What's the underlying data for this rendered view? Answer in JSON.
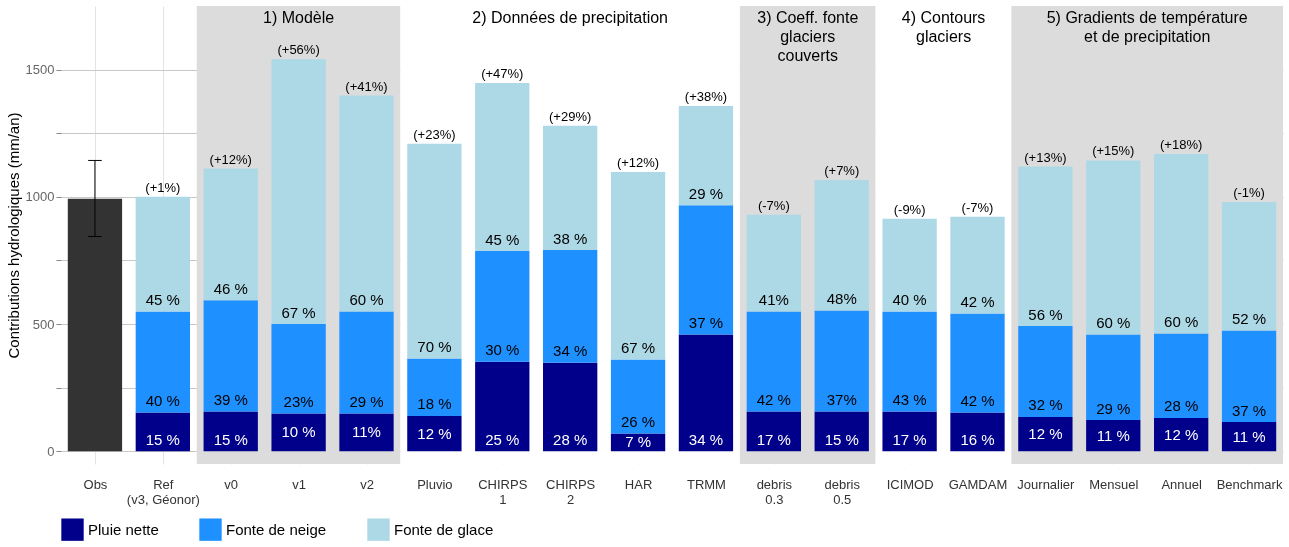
{
  "chart_data": {
    "type": "bar",
    "stacked": true,
    "ylabel": "Contributions hydrologiques (mm/an)",
    "categories": [
      "Obs",
      "Ref\n(v3, Géonor)",
      "v0",
      "v1",
      "v2",
      "Pluvio",
      "CHIRPS\n1",
      "CHIRPS\n2",
      "HAR",
      "TRMM",
      "debris\n0.3",
      "debris\n0.5",
      "ICIMOD",
      "GAMDAM",
      "Journalier",
      "Mensuel",
      "Annuel",
      "Benchmark"
    ],
    "series": [
      {
        "color": "#333333",
        "values": [
          992,
          null,
          null,
          null,
          null,
          null,
          null,
          null,
          null,
          null,
          null,
          null,
          null,
          null,
          null,
          null,
          null,
          null
        ],
        "errors": [
          [
            844,
            1143
          ],
          null,
          null,
          null,
          null,
          null,
          null,
          null,
          null,
          null,
          null,
          null,
          null,
          null,
          null,
          null,
          null,
          null
        ]
      },
      {
        "name": "Pluie nette",
        "color": "#00008b",
        "values": [
          null,
          152,
          156,
          148,
          148,
          139,
          352,
          348,
          70,
          459,
          156,
          156,
          156,
          152,
          135,
          123,
          131,
          115
        ]
      },
      {
        "name": "Fonte de neige",
        "color": "#1e90ff",
        "values": [
          null,
          397,
          438,
          352,
          401,
          226,
          435,
          443,
          291,
          508,
          393,
          397,
          393,
          389,
          357,
          336,
          332,
          360
        ]
      },
      {
        "name": "Fonte de glace",
        "color": "#add8e6",
        "values": [
          null,
          451,
          517,
          1041,
          849,
          844,
          660,
          488,
          737,
          390,
          381,
          513,
          365,
          381,
          627,
          684,
          705,
          505
        ]
      }
    ],
    "annotations": [
      {
        "text": "(+1%)",
        "x": "Ref\n(v3, Géonor)",
        "y": 1000
      },
      {
        "text": "(+12%)",
        "x": "v0",
        "y": 1111
      },
      {
        "text": "(+56%)",
        "x": "v1",
        "y": 1541
      },
      {
        "text": "(+41%)",
        "x": "v2",
        "y": 1398
      },
      {
        "text": "(+23%)",
        "x": "Pluvio",
        "y": 1209
      },
      {
        "text": "(+47%)",
        "x": "CHIRPS\n1",
        "y": 1447
      },
      {
        "text": "(+29%)",
        "x": "CHIRPS\n2",
        "y": 1279
      },
      {
        "text": "(+12%)",
        "x": "HAR",
        "y": 1098
      },
      {
        "text": "(+38%)",
        "x": "TRMM",
        "y": 1357
      },
      {
        "text": "(-7%)",
        "x": "debris\n0.3",
        "y": 930
      },
      {
        "text": "(+7%)",
        "x": "debris\n0.5",
        "y": 1066
      },
      {
        "text": "(-9%)",
        "x": "ICIMOD",
        "y": 914
      },
      {
        "text": "(-7%)",
        "x": "GAMDAM",
        "y": 922
      },
      {
        "text": "(+13%)",
        "x": "Journalier",
        "y": 1119
      },
      {
        "text": "(+15%)",
        "x": "Mensuel",
        "y": 1143
      },
      {
        "text": "(+18%)",
        "x": "Annuel",
        "y": 1168
      },
      {
        "text": "(-1%)",
        "x": "Benchmark",
        "y": 980
      },
      {
        "text": "15 %",
        "x": "Ref\n(v3, Géonor)",
        "y": 0
      },
      {
        "text": "40 %",
        "x": "Ref\n(v3, Géonor)",
        "y": 152
      },
      {
        "text": "45 %",
        "x": "Ref\n(v3, Géonor)",
        "y": 549
      },
      {
        "text": "15 %",
        "x": "v0",
        "y": 0
      },
      {
        "text": "39 %",
        "x": "v0",
        "y": 156
      },
      {
        "text": "46 %",
        "x": "v0",
        "y": 594
      },
      {
        "text": "10 %",
        "x": "v1",
        "y": 0
      },
      {
        "text": "23%",
        "x": "v1",
        "y": 148
      },
      {
        "text": "67 %",
        "x": "v1",
        "y": 500
      },
      {
        "text": "11%",
        "x": "v2",
        "y": 0
      },
      {
        "text": "29 %",
        "x": "v2",
        "y": 148
      },
      {
        "text": "60 %",
        "x": "v2",
        "y": 549
      },
      {
        "text": "12 %",
        "x": "Pluvio",
        "y": 0
      },
      {
        "text": "18 %",
        "x": "Pluvio",
        "y": 139
      },
      {
        "text": "70 %",
        "x": "Pluvio",
        "y": 365
      },
      {
        "text": "25 %",
        "x": "CHIRPS\n1",
        "y": 0
      },
      {
        "text": "30 %",
        "x": "CHIRPS\n1",
        "y": 352
      },
      {
        "text": "45 %",
        "x": "CHIRPS\n1",
        "y": 787
      },
      {
        "text": "28 %",
        "x": "CHIRPS\n2",
        "y": 0
      },
      {
        "text": "34 %",
        "x": "CHIRPS\n2",
        "y": 348
      },
      {
        "text": "38 %",
        "x": "CHIRPS\n2",
        "y": 791
      },
      {
        "text": "7 %",
        "x": "HAR",
        "y": 0
      },
      {
        "text": "26 %",
        "x": "HAR",
        "y": 70
      },
      {
        "text": "67 %",
        "x": "HAR",
        "y": 361
      },
      {
        "text": "34 %",
        "x": "TRMM",
        "y": 0
      },
      {
        "text": "37 %",
        "x": "TRMM",
        "y": 459
      },
      {
        "text": "29 %",
        "x": "TRMM",
        "y": 967
      },
      {
        "text": "17 %",
        "x": "debris\n0.3",
        "y": 0
      },
      {
        "text": "42 %",
        "x": "debris\n0.3",
        "y": 156
      },
      {
        "text": "41%",
        "x": "debris\n0.3",
        "y": 549
      },
      {
        "text": "15 %",
        "x": "debris\n0.5",
        "y": 0
      },
      {
        "text": "37%",
        "x": "debris\n0.5",
        "y": 156
      },
      {
        "text": "48%",
        "x": "debris\n0.5",
        "y": 553
      },
      {
        "text": "17 %",
        "x": "ICIMOD",
        "y": 0
      },
      {
        "text": "43 %",
        "x": "ICIMOD",
        "y": 156
      },
      {
        "text": "40 %",
        "x": "ICIMOD",
        "y": 549
      },
      {
        "text": "16 %",
        "x": "GAMDAM",
        "y": 0
      },
      {
        "text": "42 %",
        "x": "GAMDAM",
        "y": 152
      },
      {
        "text": "42 %",
        "x": "GAMDAM",
        "y": 541
      },
      {
        "text": "12 %",
        "x": "Journalier",
        "y": 0
      },
      {
        "text": "32 %",
        "x": "Journalier",
        "y": 135
      },
      {
        "text": "56 %",
        "x": "Journalier",
        "y": 492
      },
      {
        "text": "11 %",
        "x": "Mensuel",
        "y": 0
      },
      {
        "text": "29 %",
        "x": "Mensuel",
        "y": 123
      },
      {
        "text": "60 %",
        "x": "Mensuel",
        "y": 459
      },
      {
        "text": "12 %",
        "x": "Annuel",
        "y": 0
      },
      {
        "text": "28 %",
        "x": "Annuel",
        "y": 131
      },
      {
        "text": "60 %",
        "x": "Annuel",
        "y": 463
      },
      {
        "text": "11 %",
        "x": "Benchmark",
        "y": 0
      },
      {
        "text": "37 %",
        "x": "Benchmark",
        "y": 115
      },
      {
        "text": "52 %",
        "x": "Benchmark",
        "y": 475
      }
    ],
    "bands": [
      {
        "axis": "x",
        "from": "v0",
        "to": "v2",
        "label": "1) Modèle",
        "color": "#dcdcdc"
      },
      {
        "axis": "x",
        "from": "Pluvio",
        "to": "TRMM",
        "label": "2) Données de precipitation",
        "color": "#ffffff"
      },
      {
        "axis": "x",
        "from": "debris\n0.3",
        "to": "debris\n0.5",
        "label": "3) Coeff. fonte\nglaciers\ncouverts",
        "color": "#dcdcdc"
      },
      {
        "axis": "x",
        "from": "ICIMOD",
        "to": "GAMDAM",
        "label": "4) Contours\nglaciers",
        "color": "#ffffff"
      },
      {
        "axis": "x",
        "from": "Journalier",
        "to": "Benchmark",
        "label": "5) Gradients de température\net de precipitation",
        "color": "#dcdcdc"
      }
    ],
    "ylim": [
      -50,
      1750
    ],
    "yticks": [
      0,
      {
        "value": 250,
        "label": null
      },
      500,
      {
        "value": 750,
        "label": null
      },
      1000,
      {
        "value": 1250,
        "label": null
      },
      1500
    ],
    "grid": true,
    "legend": "bottom"
  }
}
